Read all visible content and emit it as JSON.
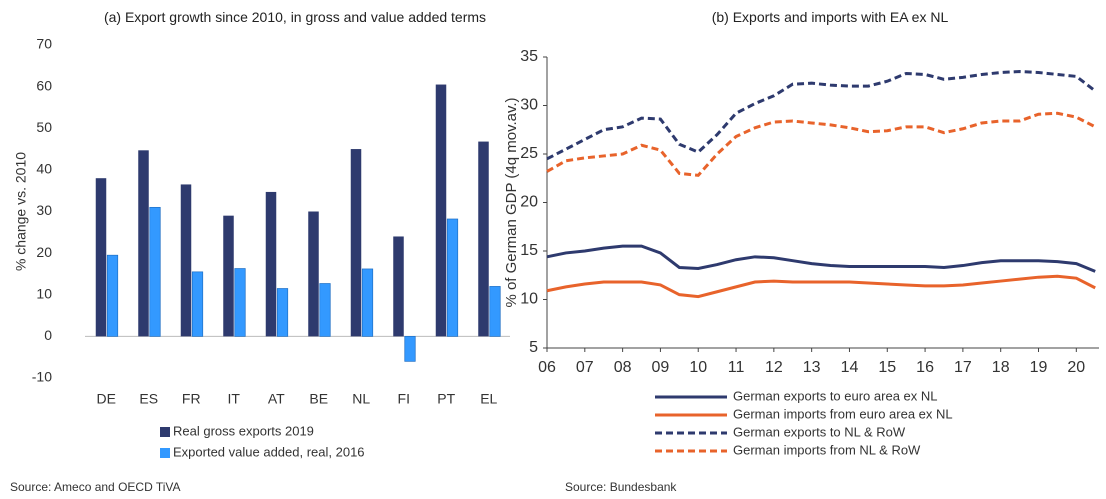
{
  "chart_data": [
    {
      "type": "bar",
      "title": "(a) Export growth since 2010, in gross and value added terms",
      "ylabel": "% change vs. 2010",
      "source": "Source: Ameco and OECD TiVA",
      "categories": [
        "DE",
        "ES",
        "FR",
        "IT",
        "AT",
        "BE",
        "NL",
        "FI",
        "PT",
        "EL"
      ],
      "series": [
        {
          "name": "Real gross exports 2019",
          "color": "#2e3a6e",
          "values": [
            38,
            44.7,
            36.5,
            29,
            34.7,
            30,
            45,
            24,
            60.5,
            46.8
          ]
        },
        {
          "name": "Exported value added, real, 2016",
          "color": "#3399ff",
          "values": [
            19.5,
            31,
            15.5,
            16.3,
            11.5,
            12.7,
            16.2,
            -6,
            28.2,
            12
          ]
        }
      ],
      "ylim": [
        -10,
        70
      ],
      "yticks": [
        -10,
        0,
        10,
        20,
        30,
        40,
        50,
        60,
        70
      ],
      "grid": false,
      "legend": "bottom"
    },
    {
      "type": "line",
      "title": "(b) Exports and imports with EA ex NL",
      "ylabel": "% of German GDP (4q mov.av.)",
      "source": "Source: Bundesbank",
      "x": [
        2006,
        2006.5,
        2007,
        2007.5,
        2008,
        2008.5,
        2009,
        2009.5,
        2010,
        2010.5,
        2011,
        2011.5,
        2012,
        2012.5,
        2013,
        2013.5,
        2014,
        2014.5,
        2015,
        2015.5,
        2016,
        2016.5,
        2017,
        2017.5,
        2018,
        2018.5,
        2019,
        2019.5,
        2020,
        2020.5
      ],
      "series": [
        {
          "name": "German exports to euro area ex NL",
          "color": "#2e3a6e",
          "dash": false,
          "values": [
            14.4,
            14.8,
            15.0,
            15.3,
            15.5,
            15.5,
            14.8,
            13.3,
            13.2,
            13.6,
            14.1,
            14.4,
            14.3,
            14,
            13.7,
            13.5,
            13.4,
            13.4,
            13.4,
            13.4,
            13.4,
            13.3,
            13.5,
            13.8,
            14,
            14,
            14,
            13.9,
            13.7,
            12.9
          ]
        },
        {
          "name": "German imports from euro area ex NL",
          "color": "#e8632b",
          "dash": false,
          "values": [
            10.9,
            11.3,
            11.6,
            11.8,
            11.8,
            11.8,
            11.5,
            10.5,
            10.3,
            10.8,
            11.3,
            11.8,
            11.9,
            11.8,
            11.8,
            11.8,
            11.8,
            11.7,
            11.6,
            11.5,
            11.4,
            11.4,
            11.5,
            11.7,
            11.9,
            12.1,
            12.3,
            12.4,
            12.2,
            11.2
          ]
        },
        {
          "name": "German exports to NL & RoW",
          "color": "#2e3a6e",
          "dash": true,
          "values": [
            24.5,
            25.5,
            26.5,
            27.5,
            27.8,
            28.7,
            28.6,
            26,
            25.2,
            27,
            29.2,
            30.2,
            31,
            32.2,
            32.3,
            32.1,
            32,
            32,
            32.5,
            33.3,
            33.2,
            32.7,
            32.9,
            33.2,
            33.4,
            33.5,
            33.4,
            33.2,
            33,
            31.5
          ]
        },
        {
          "name": "German imports from NL & RoW",
          "color": "#e8632b",
          "dash": true,
          "values": [
            23.2,
            24.3,
            24.6,
            24.8,
            25,
            25.9,
            25.4,
            23,
            22.8,
            25,
            26.8,
            27.7,
            28.3,
            28.4,
            28.2,
            28,
            27.7,
            27.3,
            27.4,
            27.8,
            27.8,
            27.2,
            27.6,
            28.2,
            28.4,
            28.4,
            29.1,
            29.2,
            28.8,
            27.8
          ]
        }
      ],
      "xlim": [
        2006,
        2020.6
      ],
      "xticks": [
        {
          "value": 2006,
          "label": "06"
        },
        {
          "value": 2007,
          "label": "07"
        },
        {
          "value": 2008,
          "label": "08"
        },
        {
          "value": 2009,
          "label": "09"
        },
        {
          "value": 2010,
          "label": "10"
        },
        {
          "value": 2011,
          "label": "11"
        },
        {
          "value": 2012,
          "label": "12"
        },
        {
          "value": 2013,
          "label": "13"
        },
        {
          "value": 2014,
          "label": "14"
        },
        {
          "value": 2015,
          "label": "15"
        },
        {
          "value": 2016,
          "label": "16"
        },
        {
          "value": 2017,
          "label": "17"
        },
        {
          "value": 2018,
          "label": "18"
        },
        {
          "value": 2019,
          "label": "19"
        },
        {
          "value": 2020,
          "label": "20"
        }
      ],
      "ylim": [
        5,
        35
      ],
      "yticks": [
        5,
        10,
        15,
        20,
        25,
        30,
        35
      ],
      "grid": false,
      "legend": "bottom"
    }
  ]
}
